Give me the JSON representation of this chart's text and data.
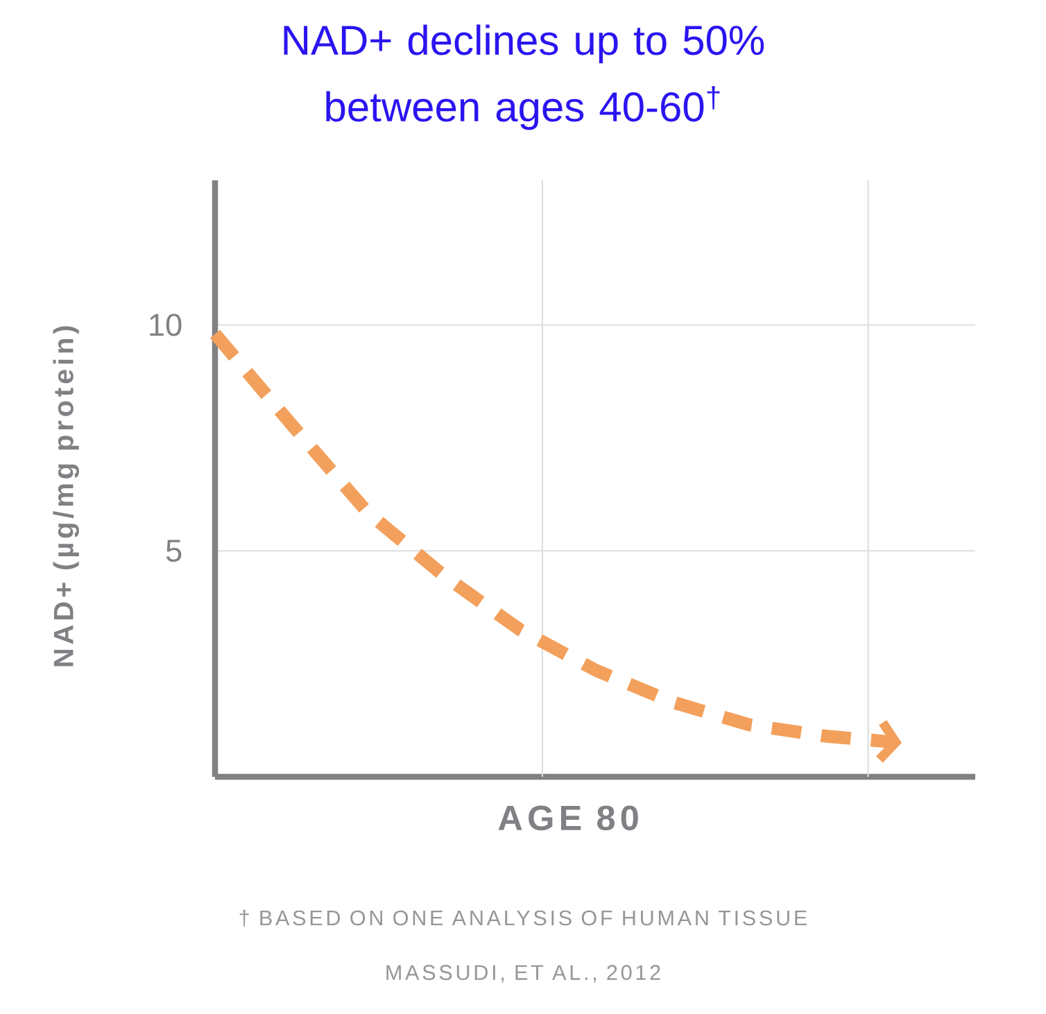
{
  "chart_data": {
    "type": "line",
    "title": "NAD+ declines up to 50% between ages 40-60$^{†}$",
    "xlabel": "AGE  80",
    "ylabel": "NAD+ (µg/mg protein)",
    "annotations": [
      "† BASED ON ONE ANALYSIS OF HUMAN TISSUE",
      "MASSUDI, ET AL., 2012"
    ],
    "categories": [
      null,
      null,
      null,
      null,
      null,
      null,
      null,
      null,
      null,
      null
    ],
    "series": [
      {
        "color": "#f3a05c",
        "values": [
          9.8,
          7.8,
          5.85,
          4.45,
          3.25,
          2.35,
          1.65,
          1.15,
          0.9,
          0.75
        ]
      }
    ],
    "ylim": [
      0,
      13.2
    ],
    "yticks": [
      5,
      10
    ],
    "grid": true,
    "line_style": "dashed",
    "marker": "none"
  }
}
